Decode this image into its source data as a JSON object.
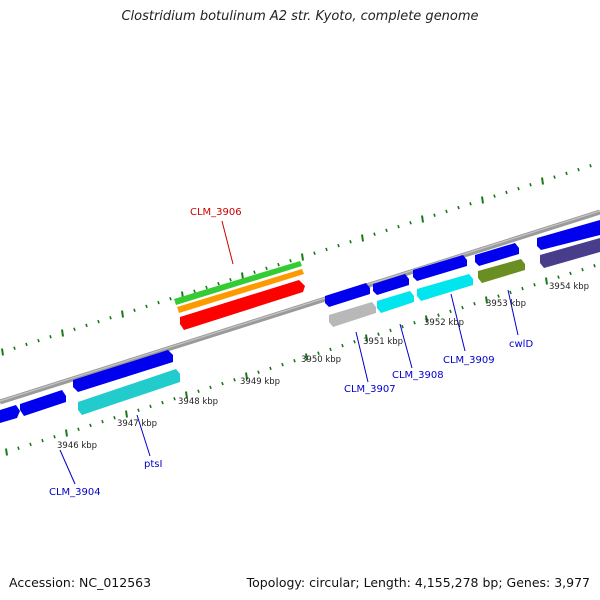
{
  "title": "Clostridium botulinum A2 str. Kyoto, complete genome",
  "footer": {
    "accession": "Accession: NC_012563",
    "summary": "Topology: circular; Length: 4,155,278 bp; Genes: 3,977"
  },
  "colors": {
    "backbone": "#8a8a8a",
    "tick": "#1a7a1a",
    "label_blue": "#0000cc",
    "label_red": "#cc0000",
    "gene_blue": "#0000ee",
    "gene_cyan": "#22cccc",
    "gene_bright_cyan": "#00e5ee",
    "gene_gray": "#b8b8b8",
    "gene_olive": "#6b8e23",
    "gene_purple": "#483d8b",
    "gene_green": "#33cc33",
    "gene_orange": "#ff9900",
    "gene_red": "#ff0000"
  },
  "scale_labels": [
    {
      "kbp": 3946,
      "text": "3946 kbp"
    },
    {
      "kbp": 3947,
      "text": "3947 kbp"
    },
    {
      "kbp": 3948,
      "text": "3948 kbp"
    },
    {
      "kbp": 3949,
      "text": "3949 kbp"
    },
    {
      "kbp": 3950,
      "text": "3950 kbp"
    },
    {
      "kbp": 3951,
      "text": "3951 kbp"
    },
    {
      "kbp": 3952,
      "text": "3952 kbp"
    },
    {
      "kbp": 3953,
      "text": "3953 kbp"
    },
    {
      "kbp": 3954,
      "text": "3954 kbp"
    }
  ],
  "gene_labels": [
    {
      "text": "CLM_3904",
      "color": "label_blue"
    },
    {
      "text": "ptsI",
      "color": "label_blue"
    },
    {
      "text": "CLM_3906",
      "color": "label_red"
    },
    {
      "text": "CLM_3907",
      "color": "label_blue"
    },
    {
      "text": "CLM_3908",
      "color": "label_blue"
    },
    {
      "text": "CLM_3909",
      "color": "label_blue"
    },
    {
      "text": "cwlD",
      "color": "label_blue"
    }
  ]
}
